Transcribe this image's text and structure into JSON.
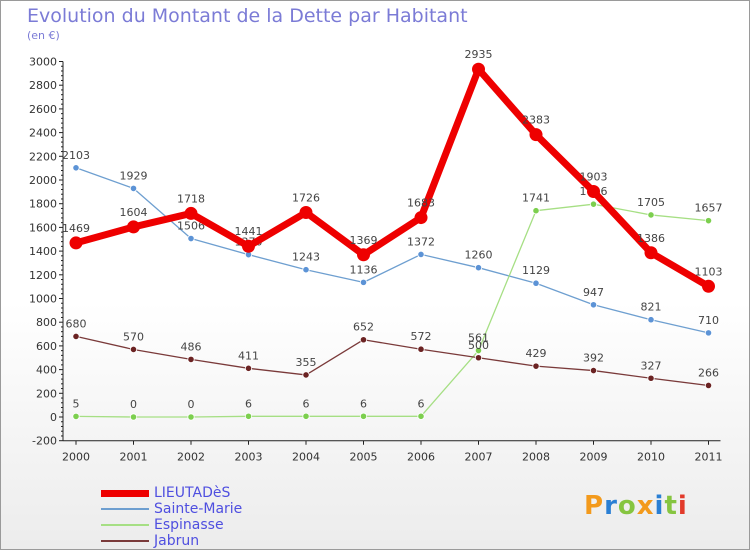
{
  "title": "Evolution du Montant de la Dette par Habitant",
  "unit": "(en €)",
  "logo": {
    "text": "Proxiti",
    "letters": [
      {
        "ch": "P",
        "color": "#f39a1c"
      },
      {
        "ch": "r",
        "color": "#2a7fd4"
      },
      {
        "ch": "o",
        "color": "#86c540"
      },
      {
        "ch": "x",
        "color": "#f39a1c"
      },
      {
        "ch": "i",
        "color": "#2a7fd4"
      },
      {
        "ch": "t",
        "color": "#86c540"
      },
      {
        "ch": "i",
        "color": "#e23a2a"
      }
    ]
  },
  "chart_data": {
    "type": "line",
    "x": [
      "2000",
      "2001",
      "2002",
      "2003",
      "2004",
      "2005",
      "2006",
      "2007",
      "2008",
      "2009",
      "2010",
      "2011"
    ],
    "ylim": [
      -200,
      3000
    ],
    "yticks": [
      "-200",
      "0",
      "200",
      "400",
      "600",
      "800",
      "1000",
      "1200",
      "1400",
      "1600",
      "1800",
      "2000",
      "2200",
      "2400",
      "2600",
      "2800",
      "3000"
    ],
    "grid": false,
    "legend_position": "bottom-left",
    "series": [
      {
        "name": "LIEUTADèS",
        "color": "#ee0000",
        "marker": "#ee0000",
        "thick": true,
        "values": [
          1469,
          1604,
          1718,
          1441,
          1726,
          1369,
          1683,
          2935,
          2383,
          1903,
          1386,
          1103
        ],
        "labels": [
          "1469",
          "1604",
          "1718",
          "1441",
          "1726",
          "1369",
          "1683",
          "2935",
          "2383",
          "1903",
          "1386",
          "1103"
        ]
      },
      {
        "name": "Sainte-Marie",
        "color": "#6e9fd0",
        "marker": "#5c93d6",
        "thick": false,
        "values": [
          2103,
          1929,
          1506,
          1370,
          1243,
          1136,
          1372,
          1260,
          1129,
          947,
          821,
          710
        ],
        "labels": [
          "2103",
          "1929",
          "1506",
          "1370",
          "1243",
          "1136",
          "1372",
          "1260",
          "1129",
          "947",
          "821",
          "710"
        ]
      },
      {
        "name": "Espinasse",
        "color": "#a6df84",
        "marker": "#7ccf4e",
        "thick": false,
        "values": [
          5,
          0,
          0,
          6,
          6,
          6,
          6,
          561,
          1741,
          1796,
          1705,
          1657
        ],
        "labels": [
          "5",
          "0",
          "0",
          "6",
          "6",
          "6",
          "6",
          "561",
          "1741",
          "1796",
          "1705",
          "1657"
        ]
      },
      {
        "name": "Jabrun",
        "color": "#7a3a3a",
        "marker": "#6b2323",
        "thick": false,
        "values": [
          680,
          570,
          486,
          411,
          355,
          652,
          572,
          500,
          429,
          392,
          327,
          266
        ],
        "labels": [
          "680",
          "570",
          "486",
          "411",
          "355",
          "652",
          "572",
          "500",
          "429",
          "392",
          "327",
          "266"
        ]
      }
    ]
  }
}
